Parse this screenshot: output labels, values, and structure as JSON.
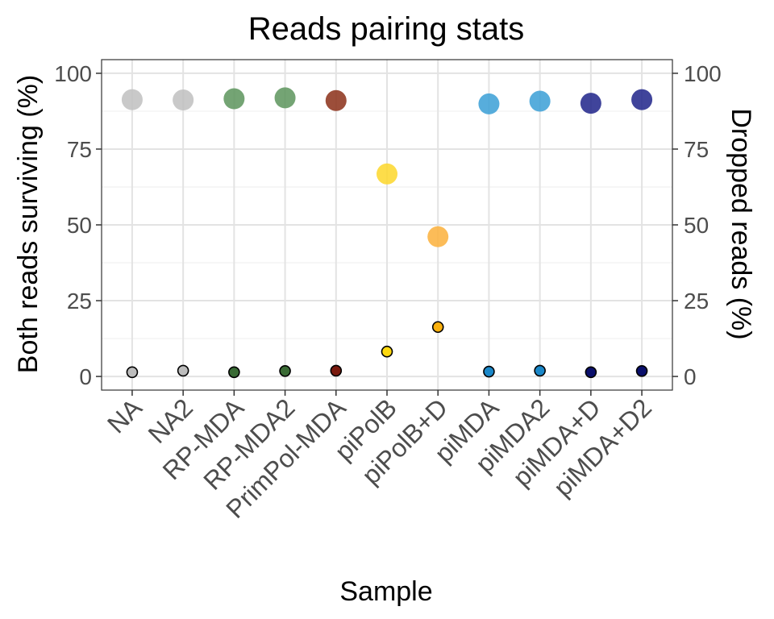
{
  "chart_data": {
    "type": "scatter",
    "title": "Reads pairing stats",
    "xlabel": "Sample",
    "ylabel": "Both reads surviving (%)",
    "y2label": "Dropped reads (%)",
    "categories": [
      "NA",
      "NA2",
      "RP-MDA",
      "RP-MDA2",
      "PrimPol-MDA",
      "piPolB",
      "piPolB+D",
      "piMDA",
      "piMDA2",
      "piMDA+D",
      "piMDA+D2"
    ],
    "ylim": [
      -4.5,
      104.5
    ],
    "yticks": [
      0,
      25,
      50,
      75,
      100
    ],
    "grid": true,
    "legend": "none",
    "series": [
      {
        "values": [
          91.3,
          91.2,
          91.6,
          91.9,
          91.0,
          66.8,
          46.1,
          89.9,
          90.8,
          90.1,
          91.3
        ],
        "colors": [
          "#bfbfbf",
          "#bfbfbf",
          "#5c945c",
          "#5c945c",
          "#8b2f17",
          "#fdd72a",
          "#fbb03b",
          "#3a9fd6",
          "#3a9fd6",
          "#1f238a",
          "#1f238a"
        ]
      },
      {
        "values": [
          1.4,
          1.9,
          1.4,
          1.8,
          1.9,
          8.2,
          16.3,
          1.6,
          1.9,
          1.4,
          1.8
        ],
        "colors": [
          "#bdbdbd",
          "#bdbdbd",
          "#3a6b35",
          "#3a6b35",
          "#7a1a0e",
          "#fdd80f",
          "#fbb10e",
          "#1a87c8",
          "#1a87c8",
          "#0a0f6b",
          "#0a0f6b"
        ]
      }
    ]
  }
}
